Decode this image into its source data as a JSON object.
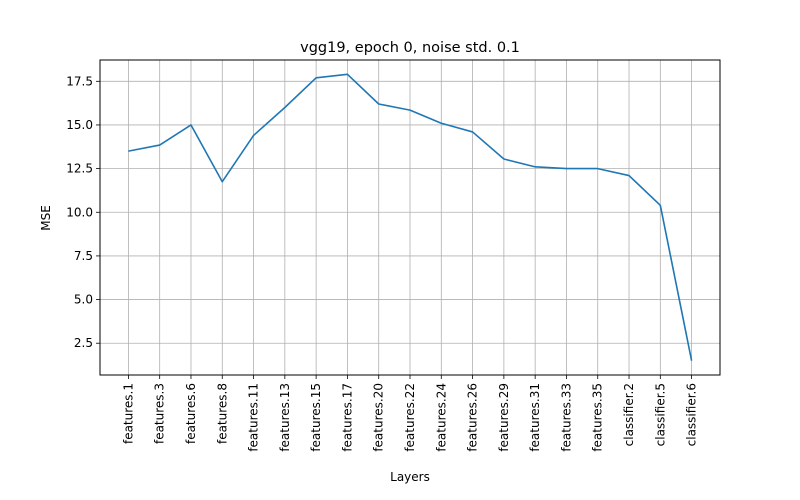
{
  "chart_data": {
    "type": "line",
    "title": "vgg19, epoch 0, noise std. 0.1",
    "xlabel": "Layers",
    "ylabel": "MSE",
    "categories": [
      "features.1",
      "features.3",
      "features.6",
      "features.8",
      "features.11",
      "features.13",
      "features.15",
      "features.17",
      "features.20",
      "features.22",
      "features.24",
      "features.26",
      "features.29",
      "features.31",
      "features.33",
      "features.35",
      "classifier.2",
      "classifier.5",
      "classifier.6"
    ],
    "series": [
      {
        "color": "#1f77b4",
        "values": [
          13.5,
          13.85,
          15.0,
          11.75,
          14.4,
          16.0,
          17.7,
          17.9,
          16.2,
          15.85,
          15.1,
          14.6,
          13.05,
          12.6,
          12.5,
          12.5,
          12.1,
          10.4,
          1.5
        ]
      }
    ],
    "yticks": [
      "2.5",
      "5.0",
      "7.5",
      "10.0",
      "12.5",
      "15.0",
      "17.5"
    ],
    "ytick_values": [
      2.5,
      5.0,
      7.5,
      10.0,
      12.5,
      15.0,
      17.5
    ],
    "ylim": [
      0.68,
      18.72
    ],
    "grid": true
  }
}
